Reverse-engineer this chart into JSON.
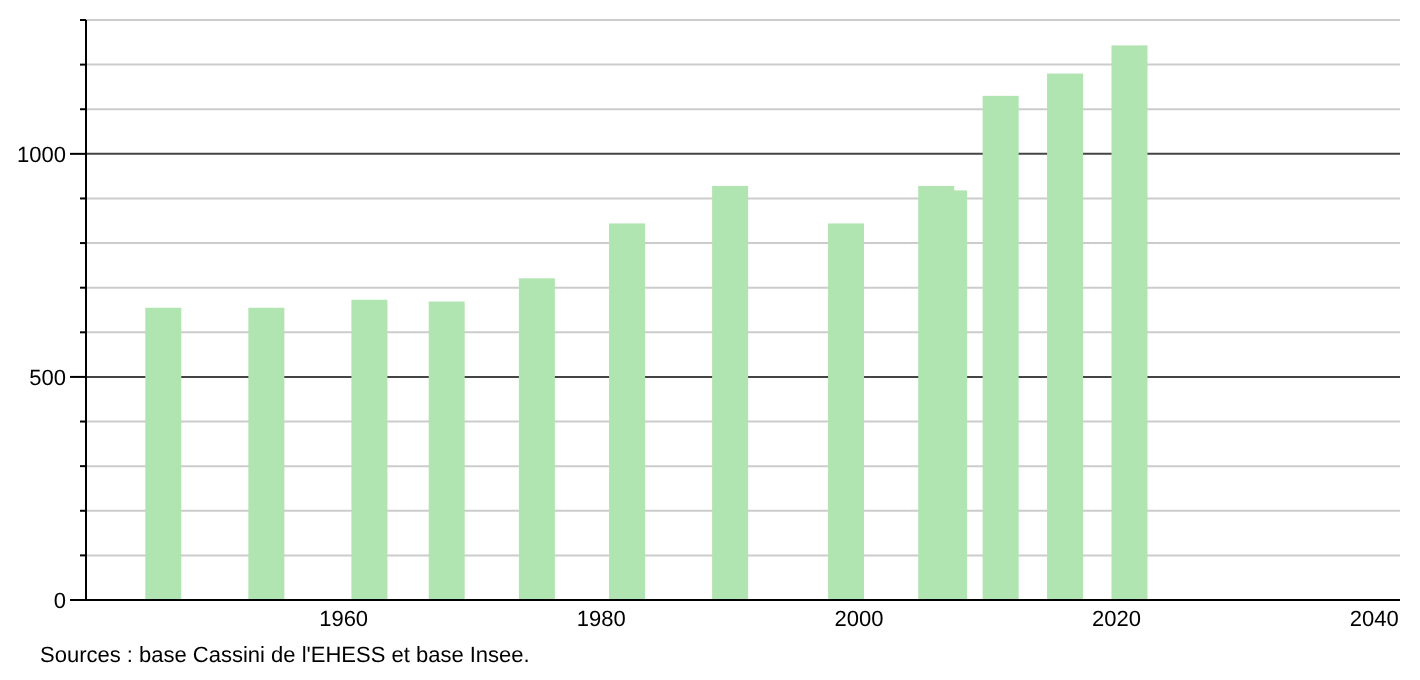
{
  "chart_data": {
    "type": "bar",
    "x": [
      1946,
      1954,
      1962,
      1968,
      1975,
      1982,
      1990,
      1999,
      2006,
      2007,
      2011,
      2016,
      2021
    ],
    "values": [
      655,
      655,
      673,
      669,
      721,
      844,
      928,
      844,
      928,
      918,
      1130,
      1180,
      1243
    ],
    "color": "#b0e4b0",
    "xlim": [
      1940,
      2042
    ],
    "xticks": [
      1960,
      1980,
      2000,
      2020,
      2040
    ],
    "ylim": [
      0,
      1300
    ],
    "yticks": [
      0,
      {
        "value": 100,
        "label": null
      },
      {
        "value": 200,
        "label": null
      },
      {
        "value": 300,
        "label": null
      },
      {
        "value": 400,
        "label": null
      },
      500,
      {
        "value": 600,
        "label": null
      },
      {
        "value": 700,
        "label": null
      },
      {
        "value": 800,
        "label": null
      },
      {
        "value": 900,
        "label": null
      },
      1000,
      {
        "value": 1100,
        "label": null
      },
      {
        "value": 1200,
        "label": null
      },
      {
        "value": 1300,
        "label": null
      }
    ],
    "grid": true,
    "annotations": [
      "Sources : base Cassini de l'EHESS et base Insee."
    ]
  }
}
